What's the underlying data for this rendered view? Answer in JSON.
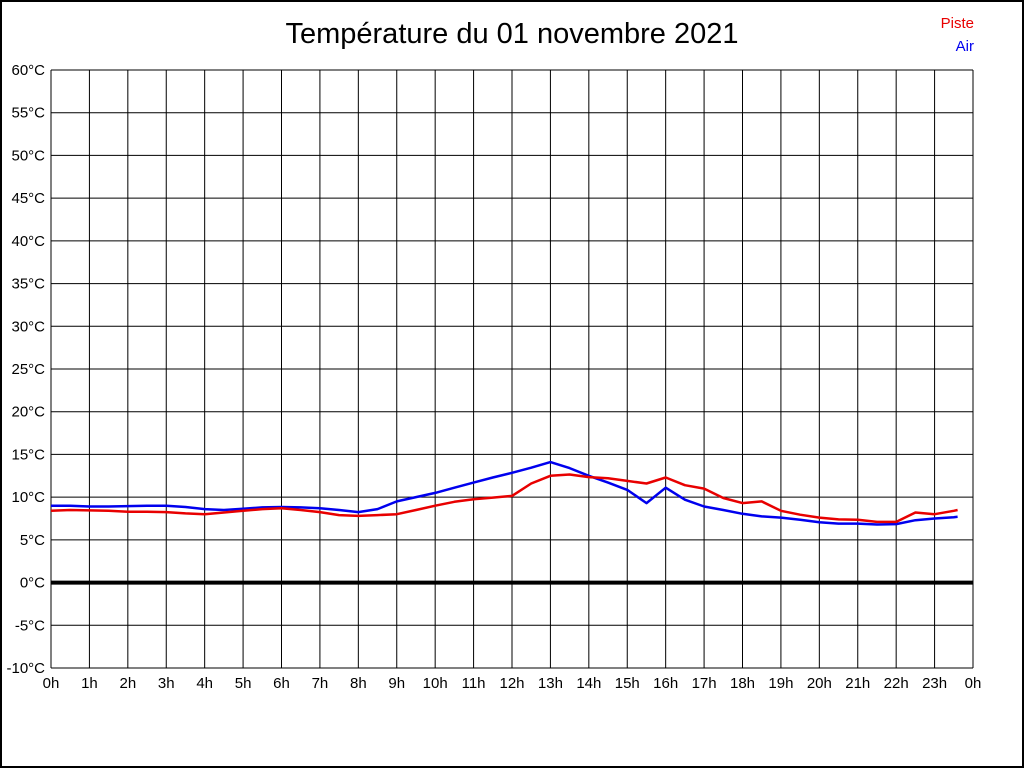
{
  "header": {
    "title": "Température du 01 novembre 2021"
  },
  "legend": {
    "items": [
      {
        "label": "Piste",
        "color": "#e80000"
      },
      {
        "label": "Air",
        "color": "#0000ee"
      }
    ]
  },
  "chart_data": {
    "type": "line",
    "title": "Température du 01 novembre 2021",
    "xlabel": "",
    "ylabel": "",
    "xlim": [
      0,
      24
    ],
    "ylim": [
      -10,
      60
    ],
    "y_step": 5,
    "grid": true,
    "background": "#ffffff",
    "grid_color": "#000000",
    "zero_line": {
      "value": 0,
      "color": "#000000",
      "width": 4
    },
    "x_ticks": [
      "0h",
      "1h",
      "2h",
      "3h",
      "4h",
      "5h",
      "6h",
      "7h",
      "8h",
      "9h",
      "10h",
      "11h",
      "12h",
      "13h",
      "14h",
      "15h",
      "16h",
      "17h",
      "18h",
      "19h",
      "20h",
      "21h",
      "22h",
      "23h",
      "0h"
    ],
    "x_tick_values": [
      0,
      1,
      2,
      3,
      4,
      5,
      6,
      7,
      8,
      9,
      10,
      11,
      12,
      13,
      14,
      15,
      16,
      17,
      18,
      19,
      20,
      21,
      22,
      23,
      24
    ],
    "y_ticks": [
      "60°C",
      "55°C",
      "50°C",
      "45°C",
      "40°C",
      "35°C",
      "30°C",
      "25°C",
      "20°C",
      "15°C",
      "10°C",
      "5°C",
      "0°C",
      "-5°C",
      "-10°C"
    ],
    "y_tick_values": [
      60,
      55,
      50,
      45,
      40,
      35,
      30,
      25,
      20,
      15,
      10,
      5,
      0,
      -5,
      -10
    ],
    "x": [
      0,
      0.5,
      1,
      1.5,
      2,
      2.5,
      3,
      3.5,
      4,
      4.5,
      5,
      5.5,
      6,
      6.5,
      7,
      7.5,
      8,
      8.5,
      9,
      9.5,
      10,
      10.5,
      11,
      11.5,
      12,
      12.5,
      13,
      13.5,
      14,
      14.5,
      15,
      15.5,
      16,
      16.5,
      17,
      17.5,
      18,
      18.5,
      19,
      19.5,
      20,
      20.5,
      21,
      21.5,
      22,
      22.5,
      23,
      23.5,
      23.6
    ],
    "series": [
      {
        "name": "Piste",
        "color": "#e80000",
        "values": [
          8.4,
          8.5,
          8.45,
          8.4,
          8.3,
          8.3,
          8.25,
          8.1,
          8.0,
          8.2,
          8.4,
          8.6,
          8.7,
          8.5,
          8.25,
          7.9,
          7.8,
          7.9,
          8.0,
          8.5,
          9.0,
          9.45,
          9.75,
          9.95,
          10.15,
          11.6,
          12.5,
          12.65,
          12.35,
          12.2,
          11.9,
          11.6,
          12.3,
          11.4,
          11.0,
          9.9,
          9.3,
          9.5,
          8.4,
          7.95,
          7.6,
          7.4,
          7.35,
          7.1,
          7.1,
          8.2,
          8.0,
          8.4,
          8.5
        ]
      },
      {
        "name": "Air",
        "color": "#0000ee",
        "values": [
          9.0,
          9.0,
          8.9,
          8.9,
          8.95,
          9.0,
          9.0,
          8.85,
          8.6,
          8.5,
          8.65,
          8.8,
          8.85,
          8.8,
          8.7,
          8.5,
          8.25,
          8.6,
          9.5,
          10.0,
          10.5,
          11.1,
          11.7,
          12.3,
          12.85,
          13.45,
          14.1,
          13.4,
          12.5,
          11.7,
          10.85,
          9.3,
          11.1,
          9.7,
          8.9,
          8.5,
          8.05,
          7.75,
          7.6,
          7.35,
          7.05,
          6.9,
          6.9,
          6.8,
          6.85,
          7.3,
          7.5,
          7.65,
          7.7
        ]
      }
    ],
    "legend_position": "top-right"
  }
}
